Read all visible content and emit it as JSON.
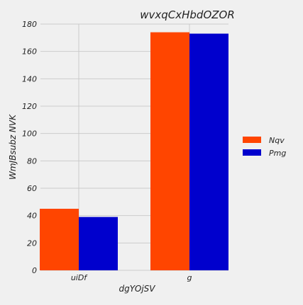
{
  "chart_data": {
    "type": "bar",
    "title": "wvxqCxHbdOZOR",
    "xlabel": "dgYOjSV",
    "ylabel": "WmJBsubz NVK",
    "categories": [
      "uiDf",
      "g"
    ],
    "series": [
      {
        "name": "Nqv",
        "color": "#ff4500",
        "values": [
          45,
          174
        ]
      },
      {
        "name": "Pmg",
        "color": "#0000cd",
        "values": [
          39,
          173
        ]
      }
    ],
    "ylim": [
      0,
      180
    ],
    "yticks": [
      0,
      20,
      40,
      60,
      80,
      100,
      120,
      140,
      160,
      180
    ],
    "grid": true,
    "legend_position": "right"
  },
  "colors": {
    "background": "#f0f0f0",
    "grid": "#cbcbcb"
  }
}
